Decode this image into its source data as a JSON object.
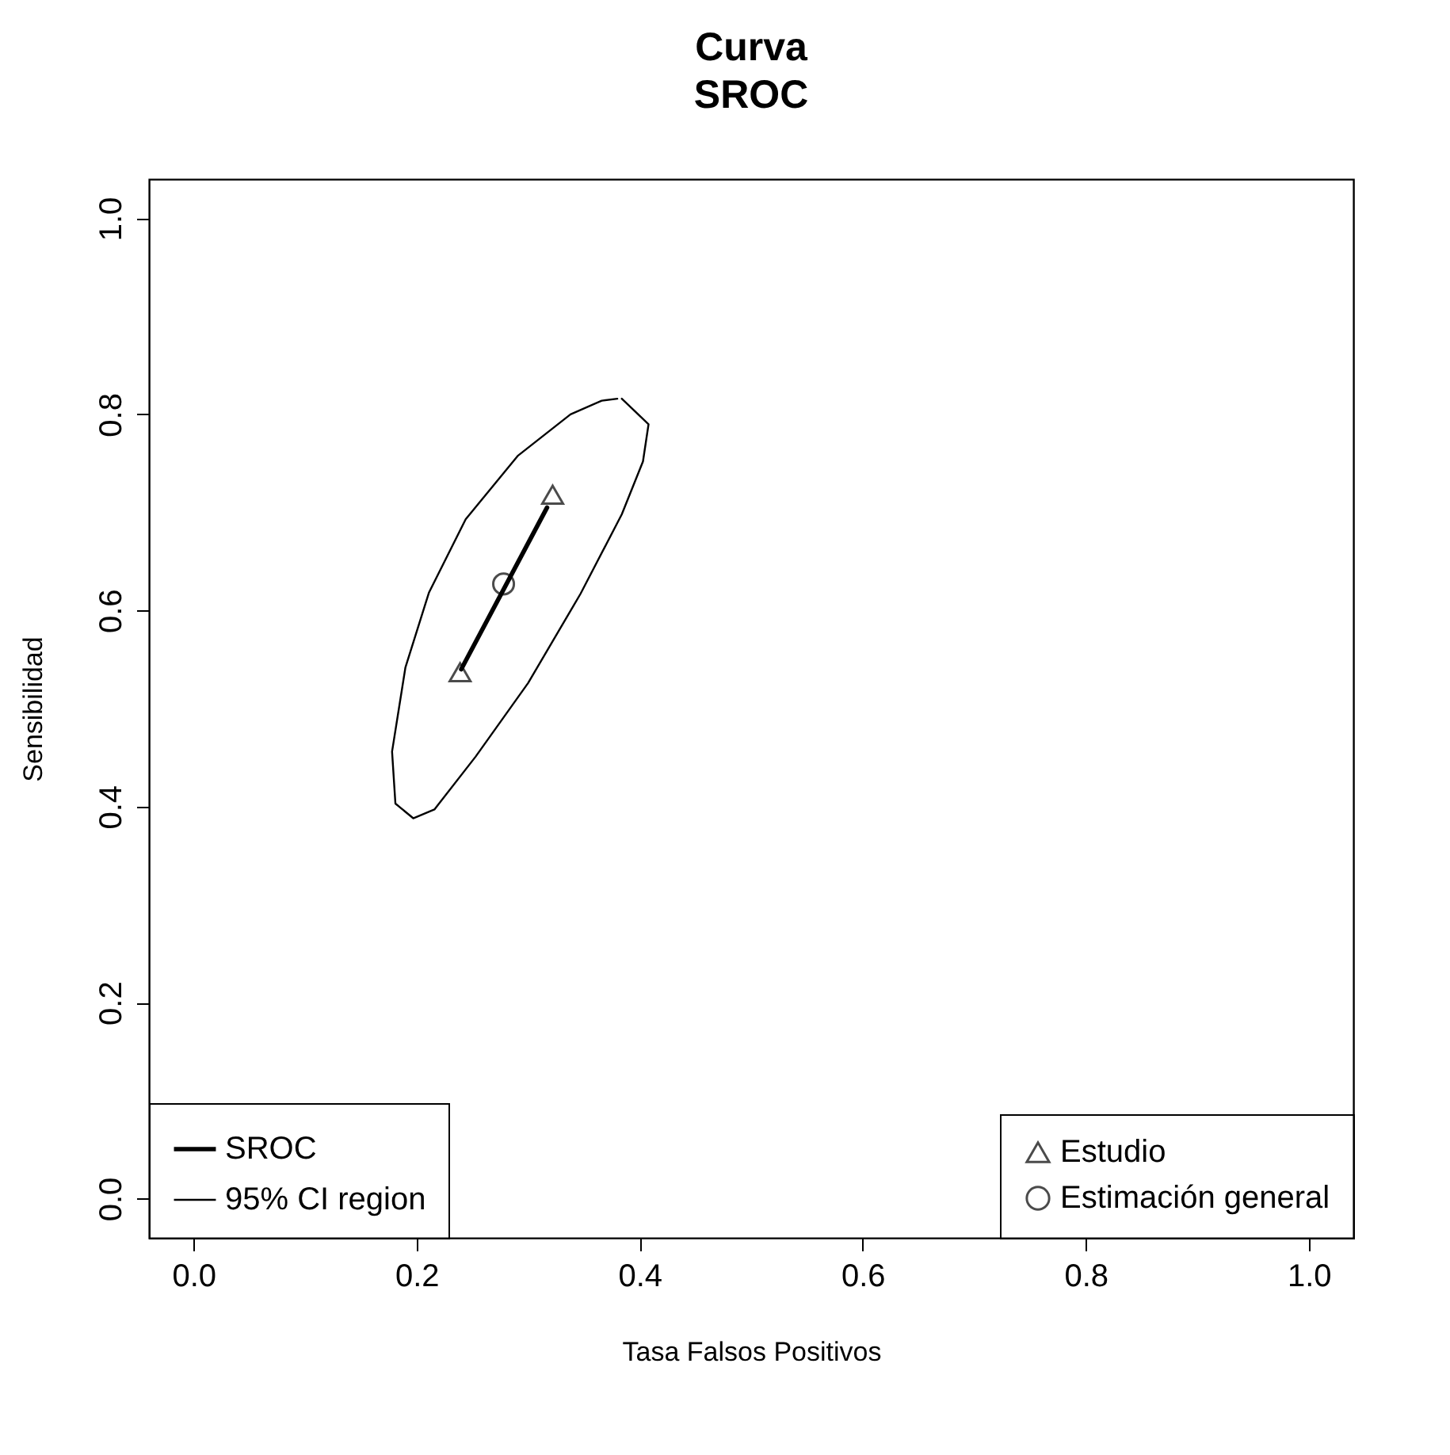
{
  "chart_data": {
    "type": "line",
    "title": "Curva\nSROC",
    "xlabel": "Tasa Falsos Positivos",
    "ylabel": "Sensibilidad",
    "xlim": [
      -0.04,
      1.04
    ],
    "ylim": [
      -0.04,
      1.04
    ],
    "xticks": [
      {
        "value": 0,
        "label": "0.0"
      },
      0.2,
      0.4,
      0.6,
      0.8,
      {
        "value": 1,
        "label": "1.0"
      }
    ],
    "yticks": [
      {
        "value": 0,
        "label": "0.0"
      },
      0.2,
      0.4,
      0.6,
      0.8,
      {
        "value": 1,
        "label": "1.0"
      }
    ],
    "grid": false,
    "legend": "bottom",
    "line_style": "solid",
    "series": [
      {
        "name": "SROC",
        "type": "line",
        "color": "#000000",
        "x": [
          0.24,
          0.317
        ],
        "values": [
          0.54,
          0.705
        ]
      },
      {
        "name": "95% CI region",
        "type": "line",
        "color": "#000000",
        "x": [
          0.384,
          0.408,
          0.403,
          0.384,
          0.347,
          0.3,
          0.253,
          0.216,
          0.197,
          0.181,
          0.178,
          0.19,
          0.211,
          0.244,
          0.291,
          0.338,
          0.366,
          0.38
        ],
        "values": [
          0.816,
          0.79,
          0.752,
          0.698,
          0.617,
          0.526,
          0.451,
          0.397,
          0.388,
          0.403,
          0.456,
          0.542,
          0.618,
          0.693,
          0.758,
          0.8,
          0.814,
          0.816
        ]
      },
      {
        "name": "Estudio",
        "type": "scatter",
        "color": "#000000",
        "marker": "triangle",
        "x": [
          0.322,
          0.239
        ],
        "values": [
          0.718,
          0.537
        ]
      },
      {
        "name": "Estimación general",
        "type": "scatter",
        "color": "#000000",
        "marker": "circle",
        "x": [
          0.278
        ],
        "values": [
          0.627
        ]
      }
    ]
  }
}
